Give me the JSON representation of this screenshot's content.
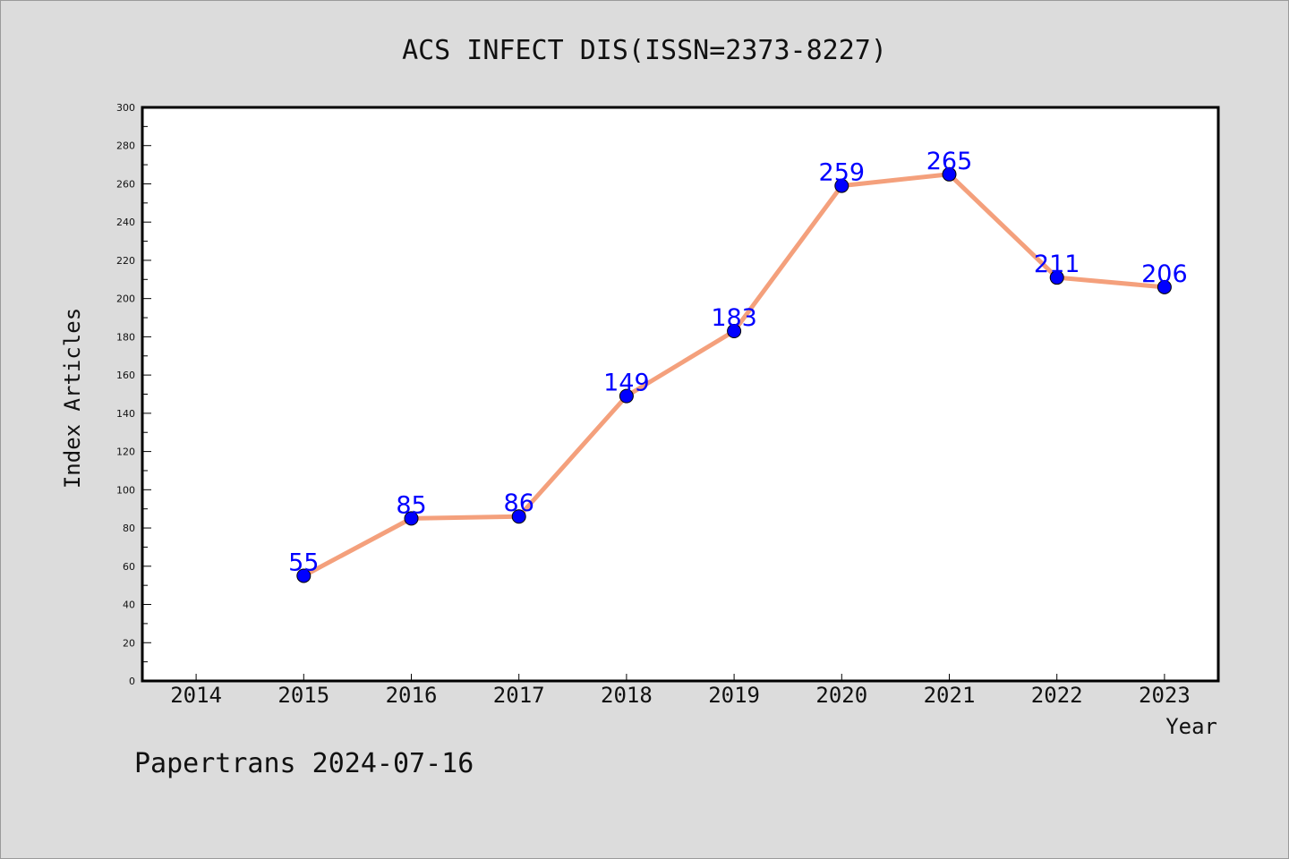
{
  "chart_data": {
    "type": "line",
    "title": "ACS INFECT DIS(ISSN=2373-8227)",
    "xlabel": "Year",
    "ylabel": "Index Articles",
    "x_ticks": [
      "2014",
      "2015",
      "2016",
      "2017",
      "2018",
      "2019",
      "2020",
      "2021",
      "2022",
      "2023"
    ],
    "y_ticks": [
      "0",
      "20",
      "40",
      "60",
      "80",
      "100",
      "120",
      "140",
      "160",
      "180",
      "200",
      "220",
      "240",
      "260",
      "280",
      "300"
    ],
    "ylim": [
      0,
      300
    ],
    "xlim": [
      2013.5,
      2023.5
    ],
    "series": [
      {
        "x": [
          2015,
          2016,
          2017,
          2018,
          2019,
          2020,
          2021,
          2022,
          2023
        ],
        "values": [
          55,
          85,
          86,
          149,
          183,
          259,
          265,
          211,
          206
        ],
        "labels": [
          "55",
          "85",
          "86",
          "149",
          "183",
          "259",
          "265",
          "211",
          "206"
        ],
        "line_color": "#f4a07c",
        "marker_color": "#0000ff"
      }
    ],
    "grid": false,
    "legend": "none"
  },
  "footer": {
    "text": "Papertrans 2024-07-16"
  }
}
